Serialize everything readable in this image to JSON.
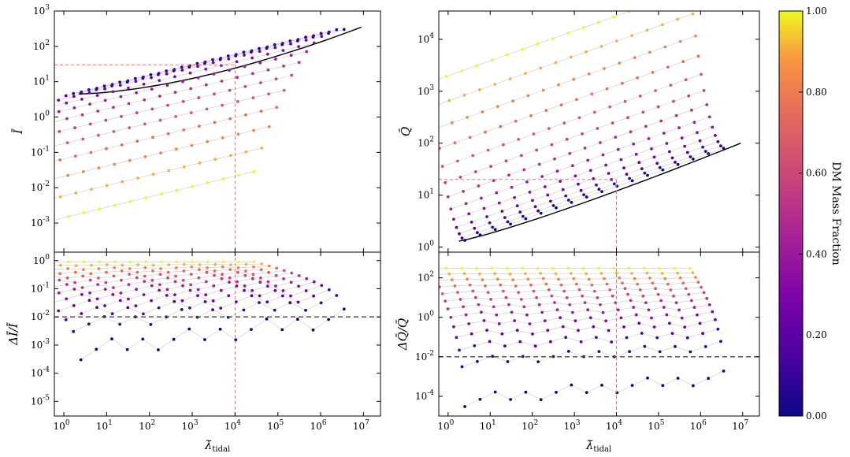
{
  "colors": {
    "dm_low": "#3d049b",
    "dm_mid": "#cc4778",
    "dm_high": "#f0f921",
    "reference_line": "#f06060",
    "threshold_line": "#444444",
    "fit_curve": "#000000",
    "connector": "#c8c8c8"
  },
  "colorbar": {
    "label": "DM Mass Fraction",
    "ticks": [
      "0.00",
      "0.20",
      "0.40",
      "0.60",
      "0.80",
      "1.00"
    ],
    "range": [
      0,
      1
    ]
  },
  "chart_data": [
    {
      "id": "I_panel",
      "type": "scatter",
      "ylabel": "Ī",
      "xlog": true,
      "ylog": true,
      "xlim": [
        0.6,
        25000000.0
      ],
      "ylim": [
        0.00015,
        1000
      ],
      "yticks": [
        {
          "v": 0.001,
          "e": "-3"
        },
        {
          "v": 0.01,
          "e": "-2"
        },
        {
          "v": 0.1,
          "e": "-1"
        },
        {
          "v": 1,
          "e": "0"
        },
        {
          "v": 10,
          "e": "1"
        },
        {
          "v": 100,
          "e": "2"
        },
        {
          "v": 1000,
          "e": "3"
        }
      ],
      "reference": {
        "x": 10000,
        "y": 30
      },
      "fit": {
        "x_start": 2.2,
        "x_end": 9000000,
        "y_start": 4.5,
        "y_end": 350
      },
      "family": {
        "count": 18,
        "start_x": 2.5,
        "x_ratio": 2.3,
        "y_start": 4.7,
        "y_end": 300,
        "shift_at_full_dm": -0.15,
        "spread": 1.8,
        "offset": 0.3
      }
    },
    {
      "id": "dI_panel",
      "type": "scatter",
      "ylabel": "ΔĪ/Ī",
      "xlog": true,
      "ylog": true,
      "xlim": [
        0.6,
        25000000.0
      ],
      "ylim": [
        3e-06,
        2
      ],
      "yticks": [
        {
          "v": 1e-05,
          "e": "-5"
        },
        {
          "v": 0.0001,
          "e": "-4"
        },
        {
          "v": 0.001,
          "e": "-3"
        },
        {
          "v": 0.01,
          "e": "-2"
        },
        {
          "v": 0.1,
          "e": "-1"
        },
        {
          "v": 1,
          "e": "0"
        }
      ],
      "threshold": 0.01,
      "reference_x": 10000,
      "family": {
        "count": 18,
        "start_x": 2.5,
        "x_ratio": 2.3,
        "y_min": 0.0003,
        "y_max": 0.9,
        "shift_at_full_dm": -0.15
      }
    },
    {
      "id": "Q_panel",
      "type": "scatter",
      "ylabel": "Q̄",
      "xlog": true,
      "ylog": true,
      "xlim": [
        0.6,
        25000000.0
      ],
      "ylim": [
        0.8,
        35000
      ],
      "yticks": [
        {
          "v": 1,
          "e": "0"
        },
        {
          "v": 10,
          "e": "1"
        },
        {
          "v": 100,
          "e": "2"
        },
        {
          "v": 1000,
          "e": "3"
        },
        {
          "v": 10000,
          "e": "4"
        }
      ],
      "reference": {
        "x": 10000,
        "y": 20
      },
      "fit": {
        "x_start": 1.8,
        "x_end": 9000000,
        "y_start": 1.3,
        "y_end": 100
      },
      "family": {
        "count": 18,
        "start_x": 2.5,
        "x_ratio": 2.3,
        "y_start": 1.35,
        "y_end": 80,
        "shift_at_full_dm": -0.15,
        "spread": 1.1,
        "offset": 0.3
      }
    },
    {
      "id": "dQ_panel",
      "type": "scatter",
      "ylabel": "ΔQ̄/Q̄",
      "xlog": true,
      "ylog": true,
      "xlim": [
        0.6,
        25000000.0
      ],
      "ylim": [
        1e-05,
        2000
      ],
      "yticks": [
        {
          "v": 0.0001,
          "e": "-4"
        },
        {
          "v": 0.01,
          "e": "-2"
        },
        {
          "v": 1,
          "e": "0"
        },
        {
          "v": 100,
          "e": "2"
        }
      ],
      "threshold": 0.01,
      "reference_x": 10000,
      "family": {
        "count": 18,
        "start_x": 2.5,
        "x_ratio": 2.3,
        "y_min": 3e-05,
        "y_max": 300,
        "shift_at_full_dm": -0.15
      }
    }
  ],
  "x_axis": {
    "label": "λ̄",
    "label_subscript": "tidal",
    "ticks": [
      {
        "v": 1,
        "e": "0"
      },
      {
        "v": 10,
        "e": "1"
      },
      {
        "v": 100,
        "e": "2"
      },
      {
        "v": 1000,
        "e": "3"
      },
      {
        "v": 10000,
        "e": "4"
      },
      {
        "v": 100000,
        "e": "5"
      },
      {
        "v": 1000000,
        "e": "6"
      },
      {
        "v": 10000000,
        "e": "7"
      }
    ]
  }
}
